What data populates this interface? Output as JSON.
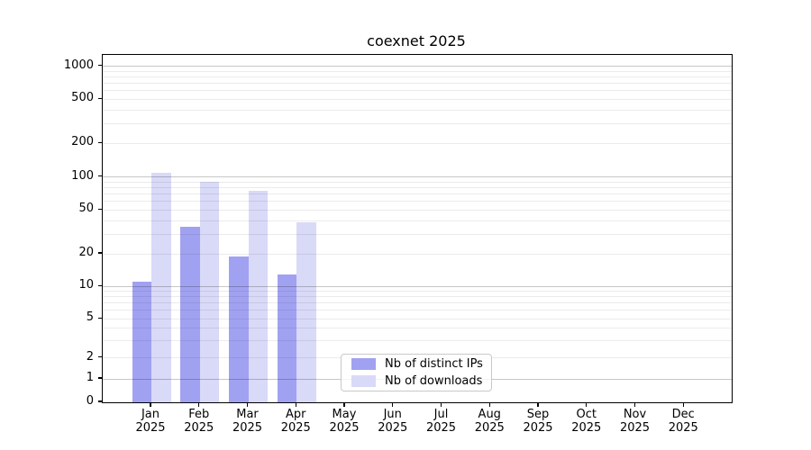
{
  "title": "coexnet 2025",
  "chart_data": {
    "type": "bar",
    "title": "coexnet 2025",
    "categories": [
      "Jan",
      "Feb",
      "Mar",
      "Apr",
      "May",
      "Jun",
      "Jul",
      "Aug",
      "Sep",
      "Oct",
      "Nov",
      "Dec"
    ],
    "x_year_label": "2025",
    "series": [
      {
        "name": "Nb of distinct IPs",
        "color": "#a1a1f1",
        "values": [
          11,
          35,
          19,
          13,
          0,
          0,
          0,
          0,
          0,
          0,
          0,
          0
        ]
      },
      {
        "name": "Nb of downloads",
        "color": "#d9d9f8",
        "values": [
          110,
          90,
          75,
          39,
          0,
          0,
          0,
          0,
          0,
          0,
          0,
          0
        ]
      }
    ],
    "yscale": "symlog",
    "ylim": [
      0,
      1000
    ],
    "ytick_values": [
      0,
      1,
      2,
      5,
      10,
      20,
      50,
      100,
      200,
      500,
      1000
    ],
    "ytick_labels": [
      "0",
      "1",
      "2",
      "5",
      "10",
      "20",
      "50",
      "100",
      "200",
      "500",
      "1000"
    ],
    "grid": "horizontal major+minor",
    "legend_position": "lower center inside plot"
  }
}
